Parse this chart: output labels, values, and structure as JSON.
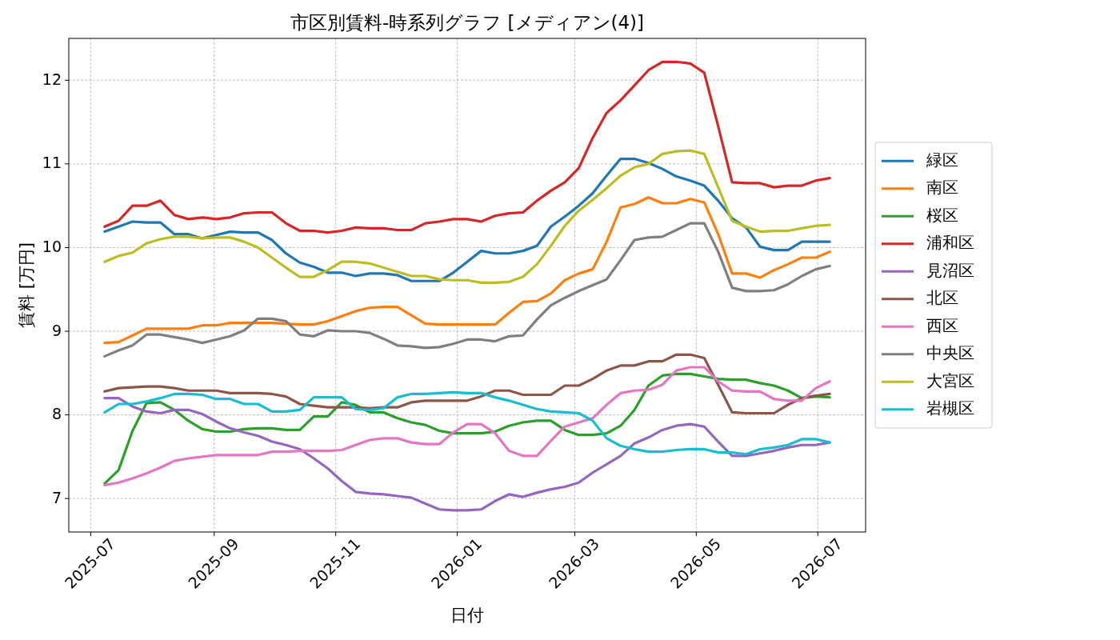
{
  "chart_data": {
    "type": "line",
    "title": "市区別賃料-時系列グラフ [メディアン(4)]",
    "xlabel": "日付",
    "ylabel": "賃料 [万円]",
    "x": [
      "2025-07-08",
      "2025-07-15",
      "2025-07-22",
      "2025-07-29",
      "2025-08-05",
      "2025-08-12",
      "2025-08-19",
      "2025-08-26",
      "2025-09-02",
      "2025-09-09",
      "2025-09-16",
      "2025-09-23",
      "2025-09-30",
      "2025-10-07",
      "2025-10-14",
      "2025-10-21",
      "2025-10-28",
      "2025-11-04",
      "2025-11-11",
      "2025-11-18",
      "2025-11-25",
      "2025-12-02",
      "2025-12-09",
      "2025-12-16",
      "2025-12-23",
      "2025-12-30",
      "2026-01-06",
      "2026-01-13",
      "2026-01-20",
      "2026-01-27",
      "2026-02-03",
      "2026-02-10",
      "2026-02-17",
      "2026-02-24",
      "2026-03-03",
      "2026-03-10",
      "2026-03-17",
      "2026-03-24",
      "2026-03-31",
      "2026-04-07",
      "2026-04-14",
      "2026-04-21",
      "2026-04-28",
      "2026-05-05",
      "2026-05-12",
      "2026-05-19",
      "2026-05-26",
      "2026-06-02",
      "2026-06-09",
      "2026-06-16",
      "2026-06-23",
      "2026-06-30",
      "2026-07-07"
    ],
    "xlim": [
      "2025-06-20",
      "2026-07-25"
    ],
    "xticks": [
      "2025-07",
      "2025-09",
      "2025-11",
      "2026-01",
      "2026-03",
      "2026-05",
      "2026-07"
    ],
    "ylim": [
      6.6,
      12.5
    ],
    "yticks": [
      7,
      8,
      9,
      10,
      11,
      12
    ],
    "grid": true,
    "legend": "right",
    "series": [
      {
        "name": "緑区",
        "color": "#1f77b4",
        "values": [
          10.19,
          10.25,
          10.31,
          10.3,
          10.3,
          10.16,
          10.16,
          10.11,
          10.15,
          10.19,
          10.18,
          10.18,
          10.09,
          9.93,
          9.82,
          9.77,
          9.7,
          9.7,
          9.66,
          9.69,
          9.69,
          9.67,
          9.6,
          9.6,
          9.6,
          9.7,
          9.83,
          9.96,
          9.93,
          9.93,
          9.96,
          10.02,
          10.25,
          10.37,
          10.5,
          10.65,
          10.86,
          11.06,
          11.06,
          11.01,
          10.94,
          10.85,
          10.8,
          10.74,
          10.56,
          10.35,
          10.24,
          10.01,
          9.97,
          9.97,
          10.07,
          10.07,
          10.07
        ]
      },
      {
        "name": "南区",
        "color": "#ff7f0e",
        "values": [
          8.86,
          8.87,
          8.95,
          9.03,
          9.03,
          9.03,
          9.03,
          9.07,
          9.07,
          9.1,
          9.1,
          9.1,
          9.1,
          9.09,
          9.08,
          9.08,
          9.12,
          9.18,
          9.24,
          9.28,
          9.29,
          9.29,
          9.19,
          9.09,
          9.08,
          9.08,
          9.08,
          9.08,
          9.08,
          9.22,
          9.35,
          9.36,
          9.45,
          9.61,
          9.69,
          9.74,
          10.07,
          10.48,
          10.52,
          10.6,
          10.53,
          10.53,
          10.58,
          10.54,
          10.16,
          9.69,
          9.69,
          9.64,
          9.73,
          9.8,
          9.88,
          9.88,
          9.95
        ]
      },
      {
        "name": "桜区",
        "color": "#2ca02c",
        "values": [
          7.18,
          7.34,
          7.81,
          8.14,
          8.15,
          8.06,
          7.93,
          7.83,
          7.8,
          7.8,
          7.83,
          7.84,
          7.84,
          7.82,
          7.82,
          7.98,
          7.98,
          8.15,
          8.12,
          8.03,
          8.03,
          7.96,
          7.91,
          7.88,
          7.81,
          7.78,
          7.78,
          7.78,
          7.8,
          7.87,
          7.91,
          7.93,
          7.93,
          7.82,
          7.76,
          7.76,
          7.78,
          7.87,
          8.06,
          8.35,
          8.47,
          8.49,
          8.49,
          8.46,
          8.43,
          8.42,
          8.42,
          8.38,
          8.35,
          8.29,
          8.2,
          8.22,
          8.21
        ]
      },
      {
        "name": "浦和区",
        "color": "#d62728",
        "values": [
          10.25,
          10.32,
          10.5,
          10.5,
          10.56,
          10.39,
          10.34,
          10.36,
          10.34,
          10.36,
          10.41,
          10.42,
          10.42,
          10.29,
          10.2,
          10.2,
          10.18,
          10.2,
          10.24,
          10.23,
          10.23,
          10.21,
          10.21,
          10.29,
          10.31,
          10.34,
          10.34,
          10.31,
          10.38,
          10.41,
          10.42,
          10.56,
          10.68,
          10.78,
          10.95,
          11.31,
          11.61,
          11.76,
          11.94,
          12.12,
          12.22,
          12.22,
          12.2,
          12.09,
          11.45,
          10.78,
          10.77,
          10.77,
          10.72,
          10.74,
          10.74,
          10.8,
          10.83
        ]
      },
      {
        "name": "見沼区",
        "color": "#9467bd",
        "values": [
          8.2,
          8.2,
          8.1,
          8.04,
          8.02,
          8.06,
          8.06,
          8.01,
          7.92,
          7.84,
          7.79,
          7.75,
          7.68,
          7.64,
          7.59,
          7.48,
          7.36,
          7.21,
          7.08,
          7.06,
          7.05,
          7.03,
          7.01,
          6.94,
          6.87,
          6.86,
          6.86,
          6.87,
          6.97,
          7.05,
          7.02,
          7.07,
          7.11,
          7.14,
          7.19,
          7.31,
          7.41,
          7.51,
          7.66,
          7.73,
          7.82,
          7.87,
          7.89,
          7.86,
          7.68,
          7.51,
          7.51,
          7.54,
          7.57,
          7.61,
          7.64,
          7.64,
          7.67
        ]
      },
      {
        "name": "北区",
        "color": "#8c564b",
        "values": [
          8.28,
          8.32,
          8.33,
          8.34,
          8.34,
          8.32,
          8.29,
          8.29,
          8.29,
          8.26,
          8.26,
          8.26,
          8.25,
          8.22,
          8.13,
          8.11,
          8.09,
          8.09,
          8.09,
          8.08,
          8.09,
          8.09,
          8.15,
          8.17,
          8.17,
          8.17,
          8.17,
          8.22,
          8.29,
          8.29,
          8.24,
          8.24,
          8.24,
          8.35,
          8.35,
          8.43,
          8.53,
          8.59,
          8.59,
          8.64,
          8.64,
          8.72,
          8.72,
          8.68,
          8.36,
          8.03,
          8.02,
          8.02,
          8.02,
          8.12,
          8.2,
          8.23,
          8.25
        ]
      },
      {
        "name": "西区",
        "color": "#e377c2",
        "values": [
          7.16,
          7.19,
          7.24,
          7.3,
          7.37,
          7.45,
          7.48,
          7.5,
          7.52,
          7.52,
          7.52,
          7.52,
          7.56,
          7.56,
          7.57,
          7.57,
          7.57,
          7.58,
          7.64,
          7.7,
          7.72,
          7.72,
          7.67,
          7.65,
          7.65,
          7.79,
          7.89,
          7.89,
          7.78,
          7.57,
          7.51,
          7.51,
          7.69,
          7.86,
          7.91,
          7.96,
          8.12,
          8.26,
          8.29,
          8.3,
          8.36,
          8.53,
          8.57,
          8.57,
          8.4,
          8.29,
          8.28,
          8.28,
          8.19,
          8.17,
          8.17,
          8.32,
          8.4
        ]
      },
      {
        "name": "中央区",
        "color": "#7f7f7f",
        "values": [
          8.7,
          8.77,
          8.83,
          8.96,
          8.96,
          8.93,
          8.9,
          8.86,
          8.9,
          8.94,
          9.01,
          9.15,
          9.15,
          9.12,
          8.96,
          8.94,
          9.01,
          9.0,
          9.0,
          8.98,
          8.91,
          8.83,
          8.82,
          8.8,
          8.81,
          8.85,
          8.9,
          8.9,
          8.88,
          8.94,
          8.95,
          9.14,
          9.31,
          9.4,
          9.48,
          9.55,
          9.62,
          9.85,
          10.09,
          10.12,
          10.13,
          10.21,
          10.29,
          10.29,
          9.95,
          9.52,
          9.48,
          9.48,
          9.49,
          9.56,
          9.66,
          9.74,
          9.78
        ]
      },
      {
        "name": "大宮区",
        "color": "#bcbd22",
        "values": [
          9.83,
          9.9,
          9.94,
          10.05,
          10.1,
          10.13,
          10.13,
          10.11,
          10.12,
          10.12,
          10.07,
          10.0,
          9.88,
          9.76,
          9.65,
          9.65,
          9.73,
          9.83,
          9.83,
          9.81,
          9.76,
          9.71,
          9.66,
          9.66,
          9.62,
          9.61,
          9.61,
          9.58,
          9.58,
          9.59,
          9.65,
          9.8,
          10.02,
          10.26,
          10.44,
          10.57,
          10.71,
          10.86,
          10.96,
          11.0,
          11.12,
          11.15,
          11.16,
          11.12,
          10.72,
          10.32,
          10.25,
          10.19,
          10.2,
          10.2,
          10.23,
          10.26,
          10.27
        ]
      },
      {
        "name": "岩槻区",
        "color": "#17becf",
        "values": [
          8.03,
          8.13,
          8.13,
          8.16,
          8.2,
          8.25,
          8.25,
          8.24,
          8.19,
          8.19,
          8.13,
          8.13,
          8.04,
          8.04,
          8.06,
          8.21,
          8.21,
          8.21,
          8.07,
          8.06,
          8.08,
          8.21,
          8.25,
          8.25,
          8.26,
          8.27,
          8.26,
          8.26,
          8.21,
          8.17,
          8.12,
          8.07,
          8.04,
          8.03,
          8.02,
          7.93,
          7.72,
          7.63,
          7.59,
          7.56,
          7.56,
          7.58,
          7.59,
          7.59,
          7.55,
          7.55,
          7.53,
          7.59,
          7.61,
          7.64,
          7.71,
          7.71,
          7.67
        ]
      }
    ]
  }
}
